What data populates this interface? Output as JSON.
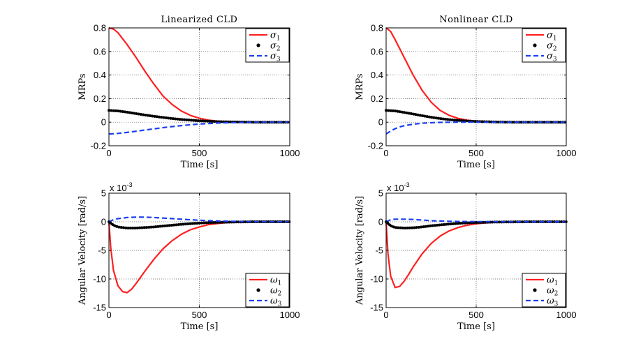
{
  "chart_data": [
    {
      "type": "line",
      "title": "Linearized CLD",
      "xlabel": "Time [s]",
      "ylabel": "MRPs",
      "xlim": [
        0,
        1000
      ],
      "ylim": [
        -0.2,
        0.8
      ],
      "xticks": [
        0,
        500,
        1000
      ],
      "yticks": [
        -0.2,
        0,
        0.2,
        0.4,
        0.6,
        0.8
      ],
      "xtick_labels": [
        "0",
        "500",
        "1000"
      ],
      "ytick_labels": [
        "-0.2",
        "0",
        "0.2",
        "0.4",
        "0.6",
        "0.8"
      ],
      "exponent_label": {
        "base": "",
        "exp": ""
      },
      "grid": true,
      "legend": "top-right",
      "series": [
        {
          "name": "σ",
          "sub": "1",
          "color": "#ff2020",
          "style": "solid",
          "x": [
            0,
            25,
            50,
            100,
            150,
            200,
            250,
            300,
            350,
            400,
            450,
            500,
            550,
            600,
            650,
            700,
            800,
            900,
            1000
          ],
          "y": [
            0.8,
            0.79,
            0.76,
            0.66,
            0.55,
            0.43,
            0.32,
            0.22,
            0.15,
            0.095,
            0.058,
            0.033,
            0.018,
            0.009,
            0.004,
            0.002,
            0.0,
            0.0,
            0.0
          ]
        },
        {
          "name": "σ",
          "sub": "2",
          "color": "#000000",
          "style": "dotted",
          "x": [
            0,
            50,
            100,
            150,
            200,
            250,
            300,
            350,
            400,
            450,
            500,
            550,
            600,
            700,
            800,
            900,
            1000
          ],
          "y": [
            0.1,
            0.095,
            0.085,
            0.073,
            0.061,
            0.05,
            0.04,
            0.031,
            0.023,
            0.017,
            0.012,
            0.008,
            0.005,
            0.002,
            0.0,
            0.0,
            0.0
          ]
        },
        {
          "name": "σ",
          "sub": "3",
          "color": "#1a3ef0",
          "style": "dashed",
          "x": [
            0,
            50,
            100,
            150,
            200,
            250,
            300,
            350,
            400,
            450,
            500,
            550,
            600,
            700,
            800,
            900,
            1000
          ],
          "y": [
            -0.1,
            -0.095,
            -0.087,
            -0.077,
            -0.066,
            -0.056,
            -0.046,
            -0.037,
            -0.029,
            -0.022,
            -0.016,
            -0.011,
            -0.007,
            -0.003,
            0.0,
            0.0,
            0.0
          ]
        }
      ]
    },
    {
      "type": "line",
      "title": "Nonlinear CLD",
      "xlabel": "Time [s]",
      "ylabel": "MRPs",
      "xlim": [
        0,
        1000
      ],
      "ylim": [
        -0.2,
        0.8
      ],
      "xticks": [
        0,
        500,
        1000
      ],
      "yticks": [
        -0.2,
        0,
        0.2,
        0.4,
        0.6,
        0.8
      ],
      "xtick_labels": [
        "0",
        "500",
        "1000"
      ],
      "ytick_labels": [
        "-0.2",
        "0",
        "0.2",
        "0.4",
        "0.6",
        "0.8"
      ],
      "exponent_label": {
        "base": "",
        "exp": ""
      },
      "grid": true,
      "legend": "top-right",
      "series": [
        {
          "name": "σ",
          "sub": "1",
          "color": "#ff2020",
          "style": "solid",
          "x": [
            0,
            25,
            50,
            100,
            150,
            200,
            250,
            300,
            350,
            400,
            450,
            500,
            550,
            600,
            700,
            800,
            900,
            1000
          ],
          "y": [
            0.8,
            0.77,
            0.7,
            0.55,
            0.4,
            0.27,
            0.17,
            0.1,
            0.058,
            0.032,
            0.017,
            0.009,
            0.004,
            0.002,
            0.0,
            0.0,
            0.0,
            0.0
          ]
        },
        {
          "name": "σ",
          "sub": "2",
          "color": "#000000",
          "style": "dotted",
          "x": [
            0,
            50,
            100,
            150,
            200,
            250,
            300,
            350,
            400,
            450,
            500,
            550,
            600,
            700,
            800,
            900,
            1000
          ],
          "y": [
            0.1,
            0.095,
            0.083,
            0.069,
            0.055,
            0.042,
            0.031,
            0.022,
            0.015,
            0.01,
            0.006,
            0.004,
            0.002,
            0.0,
            0.0,
            0.0,
            0.0
          ]
        },
        {
          "name": "σ",
          "sub": "3",
          "color": "#1a3ef0",
          "style": "dashed",
          "x": [
            0,
            25,
            50,
            75,
            100,
            150,
            200,
            250,
            300,
            400,
            500,
            600,
            700,
            800,
            900,
            1000
          ],
          "y": [
            -0.1,
            -0.075,
            -0.055,
            -0.04,
            -0.03,
            -0.017,
            -0.009,
            -0.005,
            -0.002,
            0.0,
            0.0,
            0.0,
            0.0,
            0.0,
            0.0,
            0.0
          ]
        }
      ]
    },
    {
      "type": "line",
      "title": "",
      "xlabel": "Time [s]",
      "ylabel": "Angular Velocity [rad/s]",
      "xlim": [
        0,
        1000
      ],
      "ylim": [
        -15,
        5
      ],
      "xticks": [
        0,
        500,
        1000
      ],
      "yticks": [
        -15,
        -10,
        -5,
        0,
        5
      ],
      "xtick_labels": [
        "0",
        "500",
        "1000"
      ],
      "ytick_labels": [
        "-15",
        "-10",
        "-5",
        "0",
        "5"
      ],
      "exponent_label": {
        "base": "x 10",
        "exp": "-3"
      },
      "grid": true,
      "legend": "bottom-right",
      "series": [
        {
          "name": "ω",
          "sub": "1",
          "color": "#ff2020",
          "style": "solid",
          "x": [
            0,
            10,
            25,
            50,
            75,
            100,
            125,
            150,
            200,
            250,
            300,
            350,
            400,
            450,
            500,
            550,
            600,
            650,
            700,
            800,
            900,
            1000
          ],
          "y": [
            0,
            -4.5,
            -8.5,
            -11.2,
            -12.2,
            -12.4,
            -11.8,
            -10.8,
            -8.6,
            -6.5,
            -4.7,
            -3.3,
            -2.2,
            -1.4,
            -0.9,
            -0.5,
            -0.3,
            -0.15,
            -0.05,
            0,
            0,
            0
          ]
        },
        {
          "name": "ω",
          "sub": "2",
          "color": "#000000",
          "style": "dotted",
          "x": [
            0,
            25,
            50,
            100,
            150,
            200,
            250,
            300,
            350,
            400,
            450,
            500,
            550,
            600,
            700,
            800,
            900,
            1000
          ],
          "y": [
            0,
            -0.6,
            -0.9,
            -1.1,
            -1.1,
            -1.0,
            -0.9,
            -0.75,
            -0.6,
            -0.45,
            -0.33,
            -0.23,
            -0.15,
            -0.1,
            -0.04,
            0,
            0,
            0
          ]
        },
        {
          "name": "ω",
          "sub": "3",
          "color": "#1a3ef0",
          "style": "dashed",
          "x": [
            0,
            25,
            50,
            100,
            150,
            200,
            250,
            300,
            350,
            400,
            450,
            500,
            550,
            600,
            700,
            800,
            900,
            1000
          ],
          "y": [
            0,
            0.35,
            0.55,
            0.75,
            0.8,
            0.8,
            0.75,
            0.65,
            0.55,
            0.45,
            0.35,
            0.27,
            0.2,
            0.14,
            0.06,
            0.02,
            0,
            0
          ]
        }
      ]
    },
    {
      "type": "line",
      "title": "",
      "xlabel": "Time [s]",
      "ylabel": "Angular Velocity [rad/s]",
      "xlim": [
        0,
        1000
      ],
      "ylim": [
        -15,
        5
      ],
      "xticks": [
        0,
        500,
        1000
      ],
      "yticks": [
        -15,
        -10,
        -5,
        0,
        5
      ],
      "xtick_labels": [
        "0",
        "500",
        "1000"
      ],
      "ytick_labels": [
        "-15",
        "-10",
        "-5",
        "0",
        "5"
      ],
      "exponent_label": {
        "base": "x 10",
        "exp": "-3"
      },
      "grid": true,
      "legend": "bottom-right",
      "series": [
        {
          "name": "ω",
          "sub": "1",
          "color": "#ff2020",
          "style": "solid",
          "x": [
            0,
            10,
            25,
            50,
            75,
            100,
            125,
            150,
            200,
            250,
            300,
            350,
            400,
            450,
            500,
            550,
            600,
            700,
            800,
            900,
            1000
          ],
          "y": [
            0,
            -5.5,
            -9.5,
            -11.5,
            -11.3,
            -10.4,
            -9.2,
            -7.9,
            -5.6,
            -3.8,
            -2.5,
            -1.6,
            -1.0,
            -0.6,
            -0.35,
            -0.2,
            -0.1,
            -0.02,
            0,
            0,
            0
          ]
        },
        {
          "name": "ω",
          "sub": "2",
          "color": "#000000",
          "style": "dotted",
          "x": [
            0,
            25,
            50,
            100,
            150,
            200,
            250,
            300,
            350,
            400,
            450,
            500,
            600,
            700,
            800,
            900,
            1000
          ],
          "y": [
            0,
            -0.7,
            -1.0,
            -1.1,
            -1.05,
            -0.9,
            -0.7,
            -0.55,
            -0.4,
            -0.28,
            -0.19,
            -0.12,
            -0.05,
            -0.02,
            0,
            0,
            0
          ]
        },
        {
          "name": "ω",
          "sub": "3",
          "color": "#1a3ef0",
          "style": "dashed",
          "x": [
            0,
            25,
            50,
            100,
            150,
            200,
            250,
            300,
            350,
            400,
            500,
            600,
            700,
            800,
            900,
            1000
          ],
          "y": [
            0,
            0.35,
            0.45,
            0.45,
            0.4,
            0.3,
            0.2,
            0.13,
            0.08,
            0.05,
            0.02,
            0,
            0,
            0,
            0,
            0
          ]
        }
      ]
    }
  ]
}
